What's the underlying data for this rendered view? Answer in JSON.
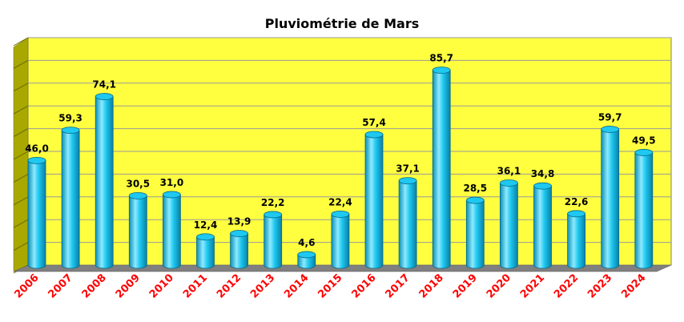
{
  "chart_data": {
    "type": "bar",
    "title": "Pluviométrie de Mars",
    "xlabel": "",
    "ylabel": "",
    "categories": [
      "2006",
      "2007",
      "2008",
      "2009",
      "2010",
      "2011",
      "2012",
      "2013",
      "2014",
      "2015",
      "2016",
      "2017",
      "2018",
      "2019",
      "2020",
      "2021",
      "2022",
      "2023",
      "2024"
    ],
    "values": [
      46.0,
      59.3,
      74.1,
      30.5,
      31.0,
      12.4,
      13.9,
      22.2,
      4.6,
      22.4,
      57.4,
      37.1,
      85.7,
      28.5,
      36.1,
      34.8,
      22.6,
      59.7,
      49.5
    ],
    "value_labels": [
      "46,0",
      "59,3",
      "74,1",
      "30,5",
      "31,0",
      "12,4",
      "13,9",
      "22,2",
      "4,6",
      "22,4",
      "57,4",
      "37,1",
      "85,7",
      "28,5",
      "36,1",
      "34,8",
      "22,6",
      "59,7",
      "49,5"
    ],
    "ylim": [
      0,
      100
    ],
    "grid": true,
    "legend": "none",
    "colors": {
      "bar": "#1ec8f0",
      "bar_light": "#8eeaff",
      "bar_dark": "#0a8fb5",
      "plot_bg": "#ffff40",
      "wall_side": "#a8a800",
      "floor": "#808080",
      "grid": "#9a9a9a",
      "tick_label": "#ff0000"
    }
  }
}
